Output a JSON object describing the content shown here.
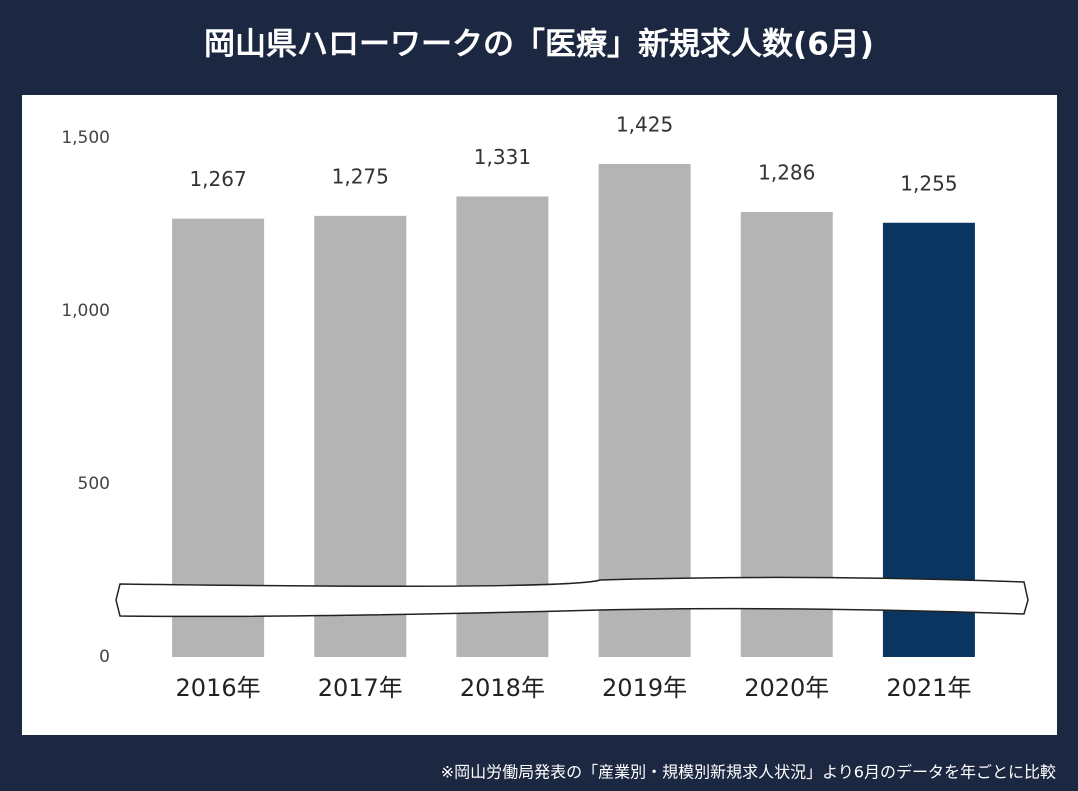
{
  "chart_data": {
    "type": "bar",
    "title": "岡山県ハローワークの「医療」新規求人数(6月)",
    "categories": [
      "2016年",
      "2017年",
      "2018年",
      "2019年",
      "2020年",
      "2021年"
    ],
    "values": [
      1267,
      1275,
      1331,
      1425,
      1286,
      1255
    ],
    "value_labels": [
      "1,267",
      "1,275",
      "1,331",
      "1,425",
      "1,286",
      "1,255"
    ],
    "colors": [
      "#b4b4b4",
      "#b4b4b4",
      "#b4b4b4",
      "#b4b4b4",
      "#b4b4b4",
      "#0a3560"
    ],
    "ylim": [
      0,
      1500
    ],
    "yticks": [
      0,
      500,
      {
        "value": 1000,
        "label": "1,000"
      },
      {
        "value": 1500,
        "label": "1,500"
      }
    ],
    "grid": false,
    "footnote": "※岡山労働局発表の「産業別・規模別新規求人状況」より6月のデータを年ごとに比較"
  }
}
